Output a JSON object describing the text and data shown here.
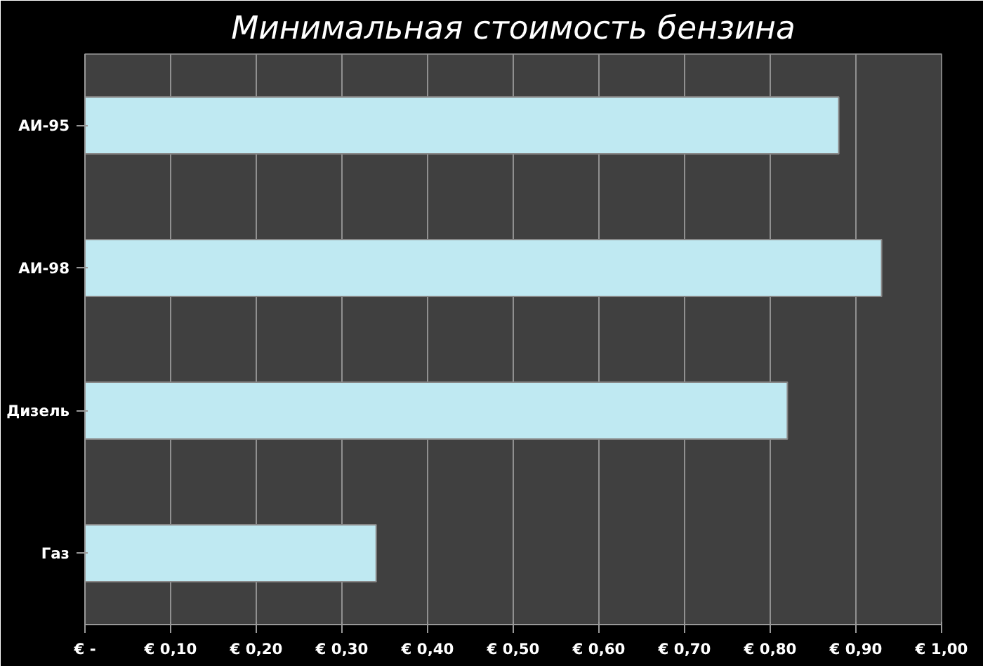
{
  "chart_data": {
    "type": "bar",
    "orientation": "horizontal",
    "title": "Минимальная стоимость бензина",
    "categories": [
      "АИ-95",
      "АИ-98",
      "Дизель",
      "Газ"
    ],
    "values": [
      0.88,
      0.93,
      0.82,
      0.34
    ],
    "color": "#bfe9f2",
    "xlim": [
      0,
      1
    ],
    "xticks": [
      {
        "value": 0,
        "label": "€ -"
      },
      {
        "value": 0.1,
        "label": "€ 0,10"
      },
      {
        "value": 0.2,
        "label": "€ 0,20"
      },
      {
        "value": 0.3,
        "label": "€ 0,30"
      },
      {
        "value": 0.4,
        "label": "€ 0,40"
      },
      {
        "value": 0.5,
        "label": "€ 0,50"
      },
      {
        "value": 0.6,
        "label": "€ 0,60"
      },
      {
        "value": 0.7,
        "label": "€ 0,70"
      },
      {
        "value": 0.8,
        "label": "€ 0,80"
      },
      {
        "value": 0.9,
        "label": "€ 0,90"
      },
      {
        "value": 1,
        "label": "€ 1,00"
      }
    ],
    "grid": "x"
  }
}
